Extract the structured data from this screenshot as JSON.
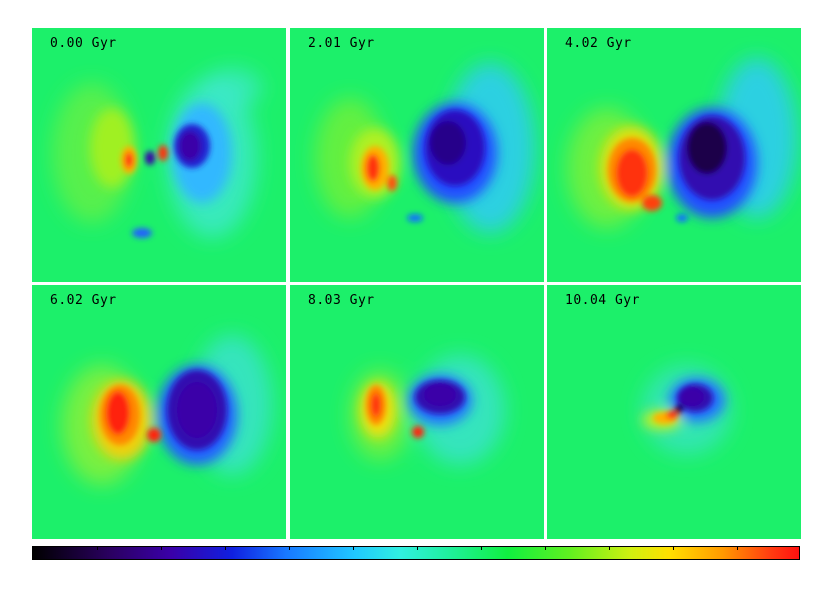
{
  "panels": [
    {
      "label": "0.00 Gyr"
    },
    {
      "label": "2.01 Gyr"
    },
    {
      "label": "4.02 Gyr"
    },
    {
      "label": "6.02 Gyr"
    },
    {
      "label": "8.03 Gyr"
    },
    {
      "label": "10.04 Gyr"
    }
  ],
  "colorbar": {
    "ticks": 11,
    "colors": [
      "#000000",
      "#3a00a8",
      "#1878ff",
      "#30f0e0",
      "#10f040",
      "#ffe000",
      "#ff1010"
    ]
  },
  "colors": {
    "background_field": "#1cf06a",
    "low": "#3a00a8",
    "high": "#ff2010"
  }
}
